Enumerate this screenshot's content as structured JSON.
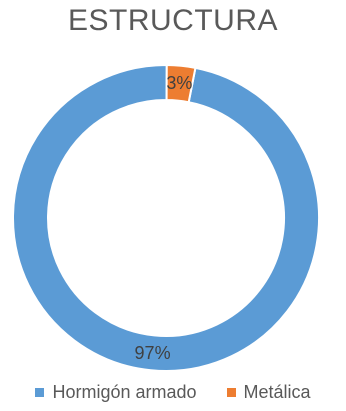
{
  "chart_data": {
    "type": "pie",
    "variant": "doughnut",
    "title": "ESTRUCTURA",
    "slices": [
      {
        "label": "Hormigón armado",
        "value": 97,
        "data_label": "97%",
        "color": "#5B9BD5"
      },
      {
        "label": "Metálica",
        "value": 3,
        "data_label": "3%",
        "color": "#ED7D31"
      }
    ],
    "legend_position": "bottom"
  }
}
